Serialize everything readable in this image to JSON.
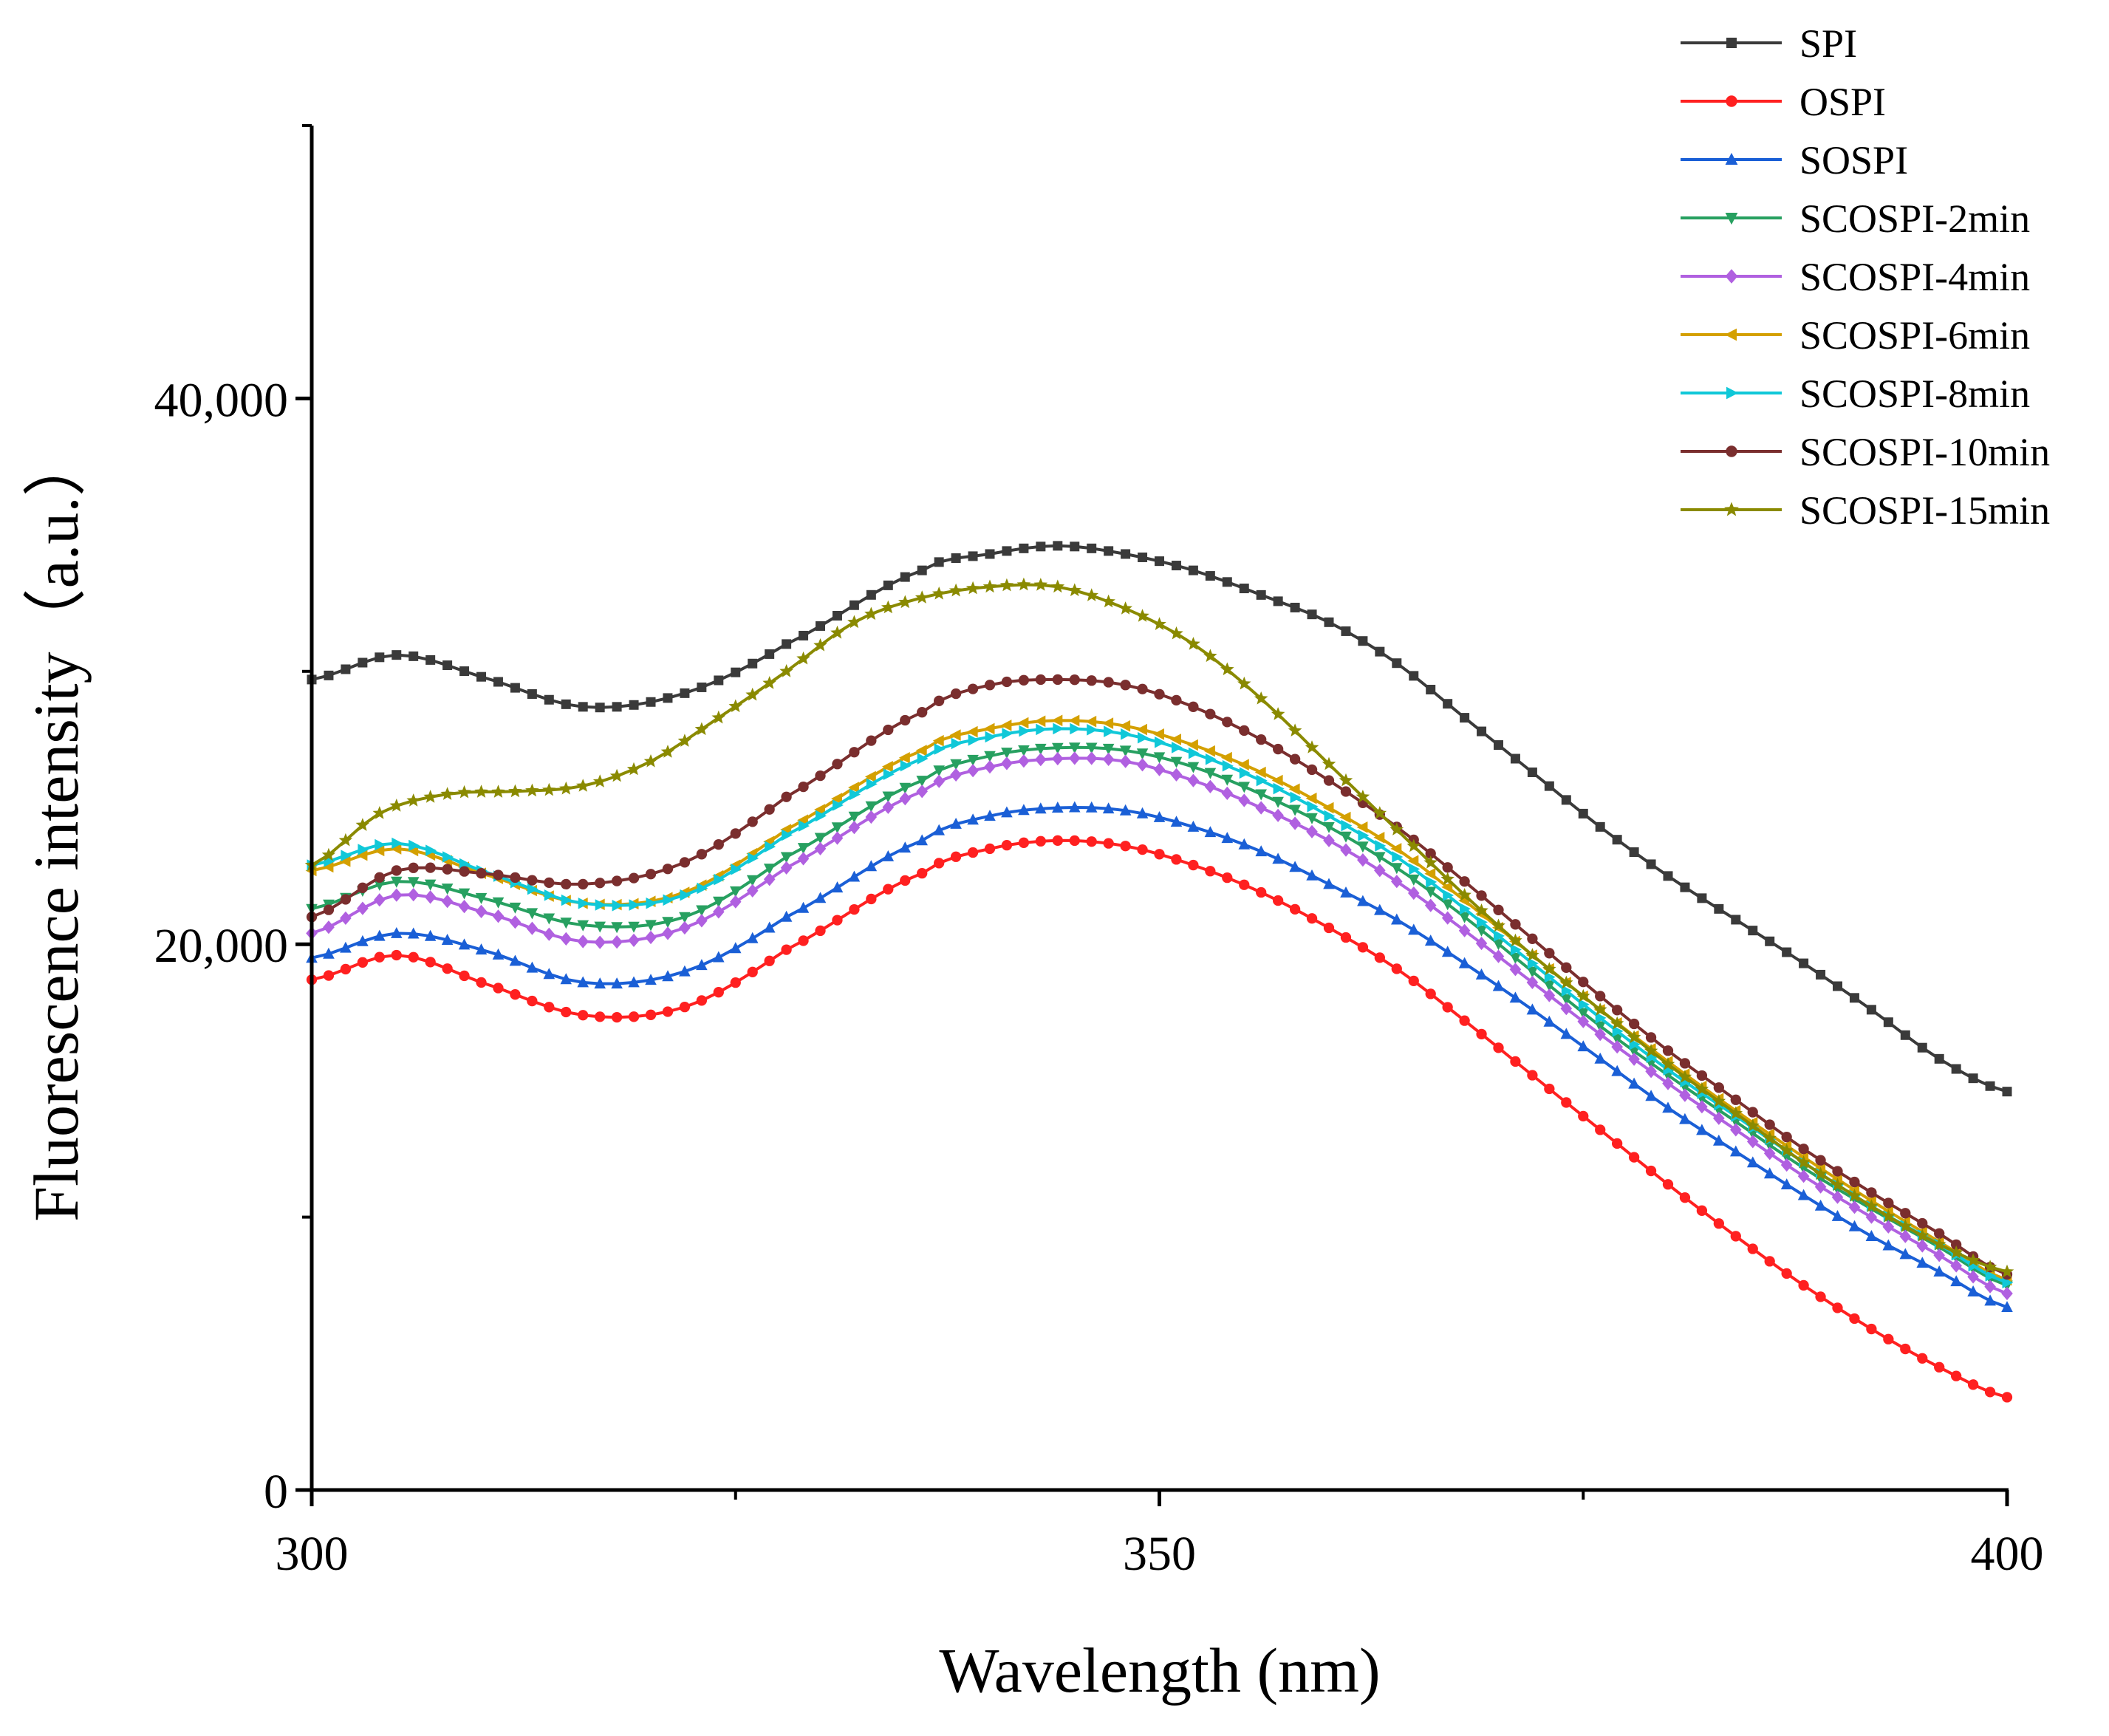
{
  "chart_data": {
    "type": "line",
    "title": "",
    "xlabel": "Wavelength (nm)",
    "ylabel": "Fluorescence intensity（a.u.）",
    "xlim": [
      300,
      400
    ],
    "ylim": [
      0,
      50000
    ],
    "x_ticks": [
      300,
      350,
      400
    ],
    "x_tick_labels": [
      "300",
      "350",
      "400"
    ],
    "y_ticks": [
      0,
      20000,
      40000
    ],
    "y_tick_labels": [
      "0",
      "20,000",
      "40,000"
    ],
    "legend_position": "top-right",
    "x_step": 1,
    "series": [
      {
        "name": "SPI",
        "color": "#3a3a3a",
        "marker": "square",
        "points": [
          [
            300,
            29700
          ],
          [
            305,
            30600
          ],
          [
            310,
            29800
          ],
          [
            316,
            28700
          ],
          [
            322,
            29200
          ],
          [
            328,
            31000
          ],
          [
            336,
            33700
          ],
          [
            340,
            34300
          ],
          [
            344,
            34600
          ],
          [
            348,
            34300
          ],
          [
            352,
            33700
          ],
          [
            356,
            32800
          ],
          [
            360,
            31800
          ],
          [
            364,
            30300
          ],
          [
            368,
            28300
          ],
          [
            372,
            26300
          ],
          [
            376,
            24300
          ],
          [
            380,
            22500
          ],
          [
            384,
            20900
          ],
          [
            388,
            19300
          ],
          [
            392,
            17600
          ],
          [
            396,
            15800
          ],
          [
            400,
            14600
          ]
        ]
      },
      {
        "name": "OSPI",
        "color": "#ff2020",
        "marker": "circle",
        "points": [
          [
            300,
            18700
          ],
          [
            305,
            19600
          ],
          [
            310,
            18600
          ],
          [
            316,
            17400
          ],
          [
            322,
            17700
          ],
          [
            328,
            19800
          ],
          [
            336,
            22600
          ],
          [
            340,
            23500
          ],
          [
            344,
            23800
          ],
          [
            348,
            23600
          ],
          [
            352,
            22900
          ],
          [
            356,
            21900
          ],
          [
            360,
            20600
          ],
          [
            364,
            19100
          ],
          [
            368,
            17200
          ],
          [
            372,
            15200
          ],
          [
            376,
            13200
          ],
          [
            380,
            11200
          ],
          [
            384,
            9300
          ],
          [
            388,
            7500
          ],
          [
            392,
            5900
          ],
          [
            396,
            4500
          ],
          [
            400,
            3400
          ]
        ]
      },
      {
        "name": "SOSPI",
        "color": "#1a5fd6",
        "marker": "triangle-up",
        "points": [
          [
            300,
            19500
          ],
          [
            305,
            20400
          ],
          [
            310,
            19800
          ],
          [
            316,
            18600
          ],
          [
            322,
            19000
          ],
          [
            328,
            21000
          ],
          [
            336,
            23800
          ],
          [
            340,
            24700
          ],
          [
            344,
            25000
          ],
          [
            348,
            24900
          ],
          [
            352,
            24300
          ],
          [
            356,
            23400
          ],
          [
            360,
            22200
          ],
          [
            364,
            20900
          ],
          [
            368,
            19300
          ],
          [
            372,
            17600
          ],
          [
            376,
            15800
          ],
          [
            380,
            14000
          ],
          [
            384,
            12400
          ],
          [
            388,
            10800
          ],
          [
            392,
            9300
          ],
          [
            396,
            8000
          ],
          [
            400,
            6700
          ]
        ]
      },
      {
        "name": "SCOSPI-2min",
        "color": "#27a060",
        "marker": "triangle-down",
        "points": [
          [
            300,
            21300
          ],
          [
            305,
            22300
          ],
          [
            310,
            21700
          ],
          [
            316,
            20700
          ],
          [
            322,
            21000
          ],
          [
            328,
            23200
          ],
          [
            336,
            26000
          ],
          [
            340,
            26900
          ],
          [
            344,
            27200
          ],
          [
            348,
            27100
          ],
          [
            352,
            26500
          ],
          [
            356,
            25500
          ],
          [
            360,
            24300
          ],
          [
            364,
            22800
          ],
          [
            368,
            21000
          ],
          [
            372,
            19000
          ],
          [
            376,
            17000
          ],
          [
            380,
            15200
          ],
          [
            384,
            13500
          ],
          [
            388,
            11800
          ],
          [
            392,
            10300
          ],
          [
            396,
            8900
          ],
          [
            400,
            7500
          ]
        ]
      },
      {
        "name": "SCOSPI-4min",
        "color": "#b060e0",
        "marker": "diamond",
        "points": [
          [
            300,
            20400
          ],
          [
            305,
            21800
          ],
          [
            310,
            21200
          ],
          [
            316,
            20100
          ],
          [
            322,
            20600
          ],
          [
            328,
            22800
          ],
          [
            336,
            25600
          ],
          [
            340,
            26500
          ],
          [
            344,
            26800
          ],
          [
            348,
            26700
          ],
          [
            352,
            26000
          ],
          [
            356,
            25000
          ],
          [
            360,
            23800
          ],
          [
            364,
            22300
          ],
          [
            368,
            20500
          ],
          [
            372,
            18600
          ],
          [
            376,
            16700
          ],
          [
            380,
            14900
          ],
          [
            384,
            13200
          ],
          [
            388,
            11500
          ],
          [
            392,
            10000
          ],
          [
            396,
            8600
          ],
          [
            400,
            7200
          ]
        ]
      },
      {
        "name": "SCOSPI-6min",
        "color": "#d4a000",
        "marker": "triangle-left",
        "points": [
          [
            300,
            22700
          ],
          [
            305,
            23500
          ],
          [
            310,
            22600
          ],
          [
            316,
            21500
          ],
          [
            322,
            21900
          ],
          [
            328,
            24200
          ],
          [
            336,
            27100
          ],
          [
            340,
            27900
          ],
          [
            344,
            28200
          ],
          [
            348,
            28000
          ],
          [
            352,
            27300
          ],
          [
            356,
            26300
          ],
          [
            360,
            25000
          ],
          [
            364,
            23500
          ],
          [
            368,
            21600
          ],
          [
            372,
            19600
          ],
          [
            376,
            17600
          ],
          [
            380,
            15700
          ],
          [
            384,
            13900
          ],
          [
            388,
            12200
          ],
          [
            392,
            10600
          ],
          [
            396,
            9100
          ],
          [
            400,
            7700
          ]
        ]
      },
      {
        "name": "SCOSPI-8min",
        "color": "#10c8d8",
        "marker": "triangle-right",
        "points": [
          [
            300,
            22900
          ],
          [
            305,
            23700
          ],
          [
            310,
            22700
          ],
          [
            316,
            21500
          ],
          [
            322,
            21800
          ],
          [
            328,
            24000
          ],
          [
            336,
            26800
          ],
          [
            340,
            27600
          ],
          [
            344,
            27900
          ],
          [
            348,
            27700
          ],
          [
            352,
            27000
          ],
          [
            356,
            26000
          ],
          [
            360,
            24700
          ],
          [
            364,
            23200
          ],
          [
            368,
            21300
          ],
          [
            372,
            19300
          ],
          [
            376,
            17300
          ],
          [
            380,
            15400
          ],
          [
            384,
            13700
          ],
          [
            388,
            12000
          ],
          [
            392,
            10400
          ],
          [
            396,
            9000
          ],
          [
            400,
            7600
          ]
        ]
      },
      {
        "name": "SCOSPI-10min",
        "color": "#7a2e2e",
        "marker": "circle",
        "points": [
          [
            300,
            21000
          ],
          [
            305,
            22700
          ],
          [
            310,
            22600
          ],
          [
            316,
            22200
          ],
          [
            322,
            23000
          ],
          [
            328,
            25400
          ],
          [
            336,
            28500
          ],
          [
            340,
            29500
          ],
          [
            344,
            29700
          ],
          [
            348,
            29500
          ],
          [
            352,
            28700
          ],
          [
            356,
            27500
          ],
          [
            360,
            26000
          ],
          [
            364,
            24300
          ],
          [
            368,
            22300
          ],
          [
            372,
            20200
          ],
          [
            376,
            18100
          ],
          [
            380,
            16100
          ],
          [
            384,
            14300
          ],
          [
            388,
            12500
          ],
          [
            392,
            10900
          ],
          [
            396,
            9400
          ],
          [
            400,
            7900
          ]
        ]
      },
      {
        "name": "SCOSPI-15min",
        "color": "#8a8a00",
        "marker": "star",
        "points": [
          [
            300,
            22900
          ],
          [
            304,
            24800
          ],
          [
            308,
            25500
          ],
          [
            312,
            25600
          ],
          [
            316,
            25800
          ],
          [
            320,
            26700
          ],
          [
            324,
            28300
          ],
          [
            328,
            30000
          ],
          [
            332,
            31800
          ],
          [
            336,
            32700
          ],
          [
            340,
            33100
          ],
          [
            344,
            33100
          ],
          [
            348,
            32300
          ],
          [
            352,
            31000
          ],
          [
            356,
            29000
          ],
          [
            360,
            26600
          ],
          [
            364,
            24200
          ],
          [
            368,
            21800
          ],
          [
            372,
            19600
          ],
          [
            376,
            17600
          ],
          [
            380,
            15600
          ],
          [
            384,
            13800
          ],
          [
            388,
            12000
          ],
          [
            392,
            10400
          ],
          [
            396,
            9000
          ],
          [
            400,
            8000
          ]
        ]
      }
    ]
  }
}
